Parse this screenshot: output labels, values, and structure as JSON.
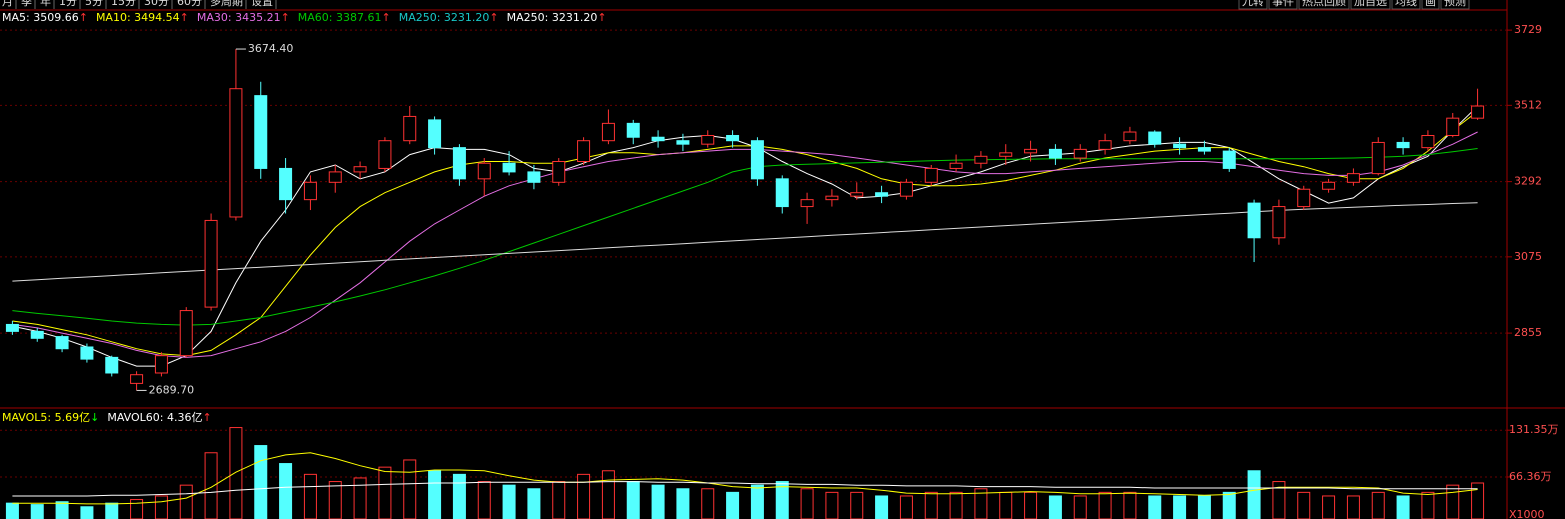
{
  "top_menu": [
    "月",
    "季",
    "年",
    "1分",
    "5分",
    "15分",
    "30分",
    "60分",
    "多周期",
    "设置"
  ],
  "right_menu": [
    "九转",
    "事件",
    "热点回顾",
    "加自选",
    "均线",
    "画",
    "预测"
  ],
  "chart_data": {
    "type": "candlestick",
    "up_color": "#ff3232",
    "down_color": "#54ffff",
    "grid": true,
    "ylim": [
      2639,
      3787
    ],
    "yticks": [
      2855,
      3075,
      3292,
      3512,
      3729
    ],
    "annotations": {
      "high": "3674.40",
      "low": "2689.70"
    },
    "open": [
      2880,
      2860,
      2845,
      2815,
      2785,
      2710,
      2740,
      2790,
      2930,
      3190,
      3540,
      3330,
      3240,
      3290,
      3320,
      3330,
      3410,
      3470,
      3390,
      3300,
      3345,
      3320,
      3290,
      3350,
      3410,
      3460,
      3420,
      3410,
      3400,
      3425,
      3410,
      3300,
      3220,
      3240,
      3250,
      3260,
      3250,
      3290,
      3330,
      3345,
      3365,
      3375,
      3385,
      3360,
      3385,
      3410,
      3435,
      3400,
      3390,
      3380,
      3230,
      3130,
      3220,
      3270,
      3290,
      3315,
      3405,
      3390,
      3425,
      3475
    ],
    "high": [
      2890,
      2870,
      2850,
      2825,
      2790,
      2745,
      2800,
      2930,
      3200,
      3674.4,
      3580,
      3360,
      3310,
      3340,
      3350,
      3420,
      3510,
      3480,
      3400,
      3360,
      3380,
      3340,
      3360,
      3420,
      3500,
      3470,
      3440,
      3430,
      3440,
      3440,
      3420,
      3310,
      3260,
      3270,
      3290,
      3280,
      3300,
      3340,
      3370,
      3380,
      3400,
      3410,
      3400,
      3400,
      3430,
      3450,
      3440,
      3420,
      3410,
      3390,
      3240,
      3240,
      3280,
      3300,
      3330,
      3420,
      3420,
      3440,
      3490,
      3560
    ],
    "low": [
      2850,
      2830,
      2800,
      2770,
      2730,
      2689.7,
      2730,
      2785,
      2920,
      3180,
      3300,
      3200,
      3210,
      3260,
      3300,
      3320,
      3400,
      3370,
      3280,
      3250,
      3310,
      3270,
      3280,
      3340,
      3400,
      3400,
      3390,
      3380,
      3390,
      3390,
      3280,
      3200,
      3170,
      3220,
      3240,
      3230,
      3240,
      3280,
      3320,
      3330,
      3340,
      3350,
      3340,
      3350,
      3370,
      3400,
      3390,
      3370,
      3370,
      3320,
      3060,
      3110,
      3210,
      3260,
      3280,
      3310,
      3370,
      3380,
      3420,
      3470
    ],
    "close": [
      2860,
      2840,
      2810,
      2780,
      2740,
      2735,
      2790,
      2920,
      3180,
      3560,
      3330,
      3240,
      3290,
      3320,
      3335,
      3410,
      3480,
      3390,
      3300,
      3345,
      3320,
      3290,
      3350,
      3410,
      3460,
      3420,
      3410,
      3400,
      3425,
      3410,
      3300,
      3220,
      3240,
      3250,
      3260,
      3250,
      3290,
      3330,
      3345,
      3365,
      3375,
      3385,
      3360,
      3385,
      3410,
      3435,
      3400,
      3390,
      3380,
      3330,
      3130,
      3220,
      3270,
      3290,
      3315,
      3405,
      3390,
      3425,
      3475,
      3510
    ],
    "series": [
      {
        "label": "MA5: 3509.66",
        "trend": "↑",
        "color": "#ffffff",
        "values": [
          2875,
          2860,
          2840,
          2815,
          2785,
          2760,
          2760,
          2790,
          2860,
          3000,
          3120,
          3210,
          3320,
          3340,
          3300,
          3320,
          3370,
          3390,
          3385,
          3385,
          3370,
          3330,
          3320,
          3345,
          3375,
          3390,
          3410,
          3420,
          3425,
          3415,
          3390,
          3350,
          3315,
          3285,
          3245,
          3250,
          3260,
          3280,
          3300,
          3320,
          3345,
          3365,
          3370,
          3375,
          3385,
          3395,
          3400,
          3405,
          3405,
          3390,
          3345,
          3300,
          3265,
          3230,
          3245,
          3300,
          3335,
          3365,
          3440,
          3509.66
        ]
      },
      {
        "label": "MA10: 3494.54",
        "trend": "↑",
        "color": "#ffff00",
        "values": [
          2890,
          2880,
          2865,
          2850,
          2830,
          2810,
          2795,
          2790,
          2805,
          2850,
          2900,
          2990,
          3080,
          3160,
          3220,
          3260,
          3290,
          3320,
          3340,
          3350,
          3350,
          3345,
          3345,
          3360,
          3375,
          3375,
          3370,
          3375,
          3385,
          3395,
          3395,
          3385,
          3370,
          3350,
          3330,
          3300,
          3285,
          3280,
          3280,
          3285,
          3295,
          3310,
          3325,
          3345,
          3360,
          3370,
          3380,
          3385,
          3390,
          3390,
          3370,
          3350,
          3335,
          3315,
          3300,
          3300,
          3330,
          3380,
          3440,
          3494.54
        ]
      },
      {
        "label": "MA30: 3435.21",
        "trend": "↑",
        "color": "#e36ee3",
        "values": [
          2880,
          2870,
          2855,
          2840,
          2825,
          2805,
          2790,
          2785,
          2790,
          2810,
          2830,
          2860,
          2900,
          2950,
          3000,
          3060,
          3120,
          3170,
          3210,
          3250,
          3280,
          3300,
          3320,
          3335,
          3350,
          3360,
          3370,
          3375,
          3380,
          3385,
          3385,
          3380,
          3375,
          3370,
          3360,
          3350,
          3340,
          3330,
          3320,
          3315,
          3315,
          3320,
          3325,
          3330,
          3335,
          3340,
          3345,
          3350,
          3350,
          3345,
          3335,
          3325,
          3315,
          3310,
          3310,
          3320,
          3340,
          3370,
          3400,
          3435.21
        ]
      },
      {
        "label": "MA60: 3387.61",
        "trend": "↑",
        "color": "#00c800",
        "values": [
          2920,
          2912,
          2905,
          2898,
          2890,
          2884,
          2880,
          2878,
          2880,
          2890,
          2900,
          2915,
          2930,
          2945,
          2962,
          2980,
          3000,
          3020,
          3042,
          3065,
          3090,
          3115,
          3140,
          3165,
          3190,
          3215,
          3240,
          3265,
          3290,
          3320,
          3335,
          3340,
          3342,
          3344,
          3346,
          3348,
          3350,
          3352,
          3354,
          3355,
          3356,
          3357,
          3358,
          3358,
          3358,
          3358,
          3358,
          3358,
          3358,
          3358,
          3358,
          3358,
          3358,
          3359,
          3360,
          3362,
          3365,
          3370,
          3378,
          3387.61
        ]
      },
      {
        "label": "MA250: 3231.20",
        "trend": "↑",
        "color": "#dddddd",
        "label_color": "#19c8c8",
        "values": [
          3005,
          3009,
          3013,
          3017,
          3021,
          3025,
          3029,
          3033,
          3037,
          3041,
          3045,
          3049,
          3053,
          3057,
          3061,
          3065,
          3069,
          3073,
          3077,
          3081,
          3085,
          3089,
          3093,
          3097,
          3101,
          3105,
          3109,
          3113,
          3117,
          3121,
          3125,
          3129,
          3133,
          3137,
          3141,
          3145,
          3149,
          3153,
          3157,
          3161,
          3165,
          3169,
          3173,
          3177,
          3181,
          3185,
          3189,
          3193,
          3197,
          3201,
          3205,
          3209,
          3212,
          3215,
          3218,
          3221,
          3224,
          3226,
          3229,
          3231.2
        ]
      }
    ],
    "extra_legend": [
      {
        "label": "MA250: 3231.20",
        "trend": "↑",
        "color": "#ffffff"
      }
    ],
    "volume": {
      "ylim": [
        8,
        158
      ],
      "yticks": [
        {
          "value": 131.35,
          "label": "131.35万"
        },
        {
          "value": 66.36,
          "label": "66.36万"
        }
      ],
      "unit_label": "X1000",
      "values": [
        30,
        28,
        32,
        25,
        30,
        35,
        40,
        55,
        100,
        135,
        110,
        85,
        70,
        60,
        65,
        80,
        90,
        75,
        70,
        60,
        55,
        50,
        60,
        70,
        75,
        60,
        55,
        50,
        50,
        45,
        55,
        60,
        50,
        45,
        45,
        40,
        40,
        45,
        45,
        50,
        45,
        45,
        40,
        40,
        45,
        45,
        40,
        40,
        40,
        45,
        75,
        60,
        45,
        40,
        40,
        45,
        40,
        45,
        55,
        58
      ],
      "series": [
        {
          "label": "MAVOL5: 5.69亿",
          "trend": "↓",
          "color": "#ffff00",
          "trend_color": "#00ff00",
          "values": [
            30,
            30,
            30,
            29,
            29,
            30,
            32,
            37,
            52,
            73,
            89,
            97,
            100,
            92,
            82,
            74,
            73,
            76,
            76,
            75,
            68,
            62,
            59,
            59,
            62,
            63,
            64,
            62,
            58,
            53,
            51,
            53,
            52,
            51,
            51,
            48,
            44,
            43,
            43,
            44,
            45,
            46,
            45,
            43,
            43,
            44,
            43,
            42,
            41,
            42,
            48,
            52,
            52,
            52,
            52,
            51,
            44,
            42,
            45,
            49
          ]
        },
        {
          "label": "MAVOL60: 4.36亿",
          "trend": "↑",
          "color": "#ffffff",
          "trend_color": "#ff3232",
          "values": [
            40,
            40,
            40,
            40,
            41,
            41,
            42,
            43,
            45,
            48,
            50,
            52,
            53,
            54,
            55,
            56,
            57,
            58,
            58,
            59,
            59,
            59,
            59,
            59,
            60,
            60,
            59,
            59,
            58,
            58,
            57,
            57,
            56,
            56,
            55,
            55,
            54,
            54,
            54,
            53,
            53,
            53,
            52,
            52,
            52,
            52,
            51,
            51,
            51,
            51,
            51,
            51,
            51,
            51,
            50,
            50,
            50,
            50,
            50,
            50
          ]
        }
      ]
    }
  }
}
